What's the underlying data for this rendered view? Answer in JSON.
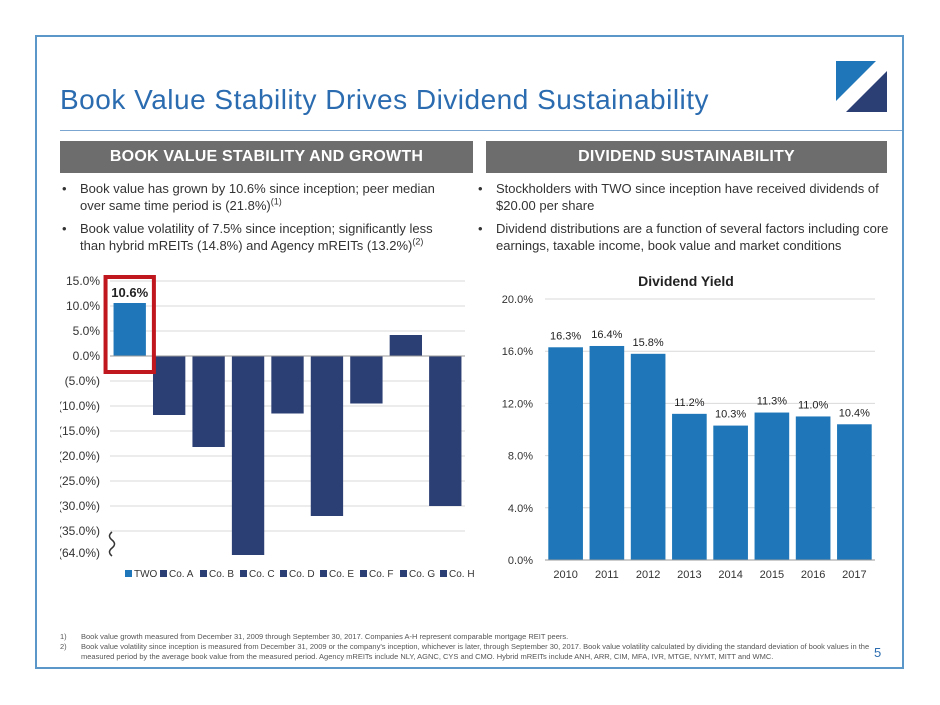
{
  "title": "Book Value Stability Drives Dividend Sustainability",
  "page_number": "5",
  "colors": {
    "frame": "#5b97c9",
    "title": "#2b6cb0",
    "header_bg": "#6d6d6d",
    "bar_blue": "#1f77b9",
    "bar_navy": "#2c3f75",
    "highlight": "#c0161d"
  },
  "left_section": {
    "header": "BOOK VALUE STABILITY AND GROWTH",
    "bullets": [
      {
        "text": "Book value has grown by 10.6% since inception; peer median over same time period is (21.8%)",
        "sup": "(1)"
      },
      {
        "text": "Book value volatility of 7.5% since inception; significantly less than hybrid mREITs (14.8%) and Agency mREITs (13.2%)",
        "sup": "(2)"
      }
    ]
  },
  "right_section": {
    "header": "DIVIDEND SUSTAINABILITY",
    "bullets": [
      {
        "text": "Stockholders with TWO since inception have received dividends of $20.00 per share"
      },
      {
        "text": "Dividend distributions are a function of several factors including core earnings, taxable income, book value and market conditions"
      }
    ]
  },
  "chart_data": [
    {
      "type": "bar",
      "title": "",
      "categories": [
        "TWO",
        "Co. A",
        "Co. B",
        "Co. C",
        "Co. D",
        "Co. E",
        "Co. F",
        "Co. G",
        "Co. H"
      ],
      "values": [
        10.6,
        -11.8,
        -18.2,
        -64.0,
        -11.5,
        -32.0,
        -9.5,
        4.2,
        -30.0
      ],
      "highlight_label": "10.6%",
      "y_ticks": [
        "15.0%",
        "10.0%",
        "5.0%",
        "0.0%",
        "(5.0%)",
        "(10.0%)",
        "(15.0%)",
        "(20.0%)",
        "(25.0%)",
        "(30.0%)",
        "(35.0%)",
        "(64.0%)"
      ],
      "ylim": [
        -40,
        15
      ],
      "axis_break": true,
      "legend_position": "bottom",
      "legend": [
        "TWO",
        "Co. A",
        "Co. B",
        "Co. C",
        "Co. D",
        "Co. E",
        "Co. F",
        "Co. G",
        "Co. H"
      ]
    },
    {
      "type": "bar",
      "title": "Dividend Yield",
      "categories": [
        "2010",
        "2011",
        "2012",
        "2013",
        "2014",
        "2015",
        "2016",
        "2017"
      ],
      "values": [
        16.3,
        16.4,
        15.8,
        11.2,
        10.3,
        11.3,
        11.0,
        10.4
      ],
      "labels": [
        "16.3%",
        "16.4%",
        "15.8%",
        "11.2%",
        "10.3%",
        "11.3%",
        "11.0%",
        "10.4%"
      ],
      "y_ticks": [
        "0.0%",
        "4.0%",
        "8.0%",
        "12.0%",
        "16.0%",
        "20.0%"
      ],
      "ylim": [
        0,
        20
      ]
    }
  ],
  "footnotes": [
    {
      "num": "1)",
      "text": "Book value growth measured from December 31, 2009 through September 30, 2017.  Companies A-H represent comparable mortgage REIT peers."
    },
    {
      "num": "2)",
      "text": "Book value volatility since inception is measured from December 31, 2009 or the company's inception, whichever is later, through September 30, 2017. Book value volatility calculated by dividing the standard deviation of book values in the measured period by the average book value from the measured period.  Agency mREITs include NLY, AGNC, CYS and CMO.  Hybrid mREITs include ANH, ARR, CIM, MFA, IVR, MTGE, NYMT, MITT and WMC."
    }
  ]
}
